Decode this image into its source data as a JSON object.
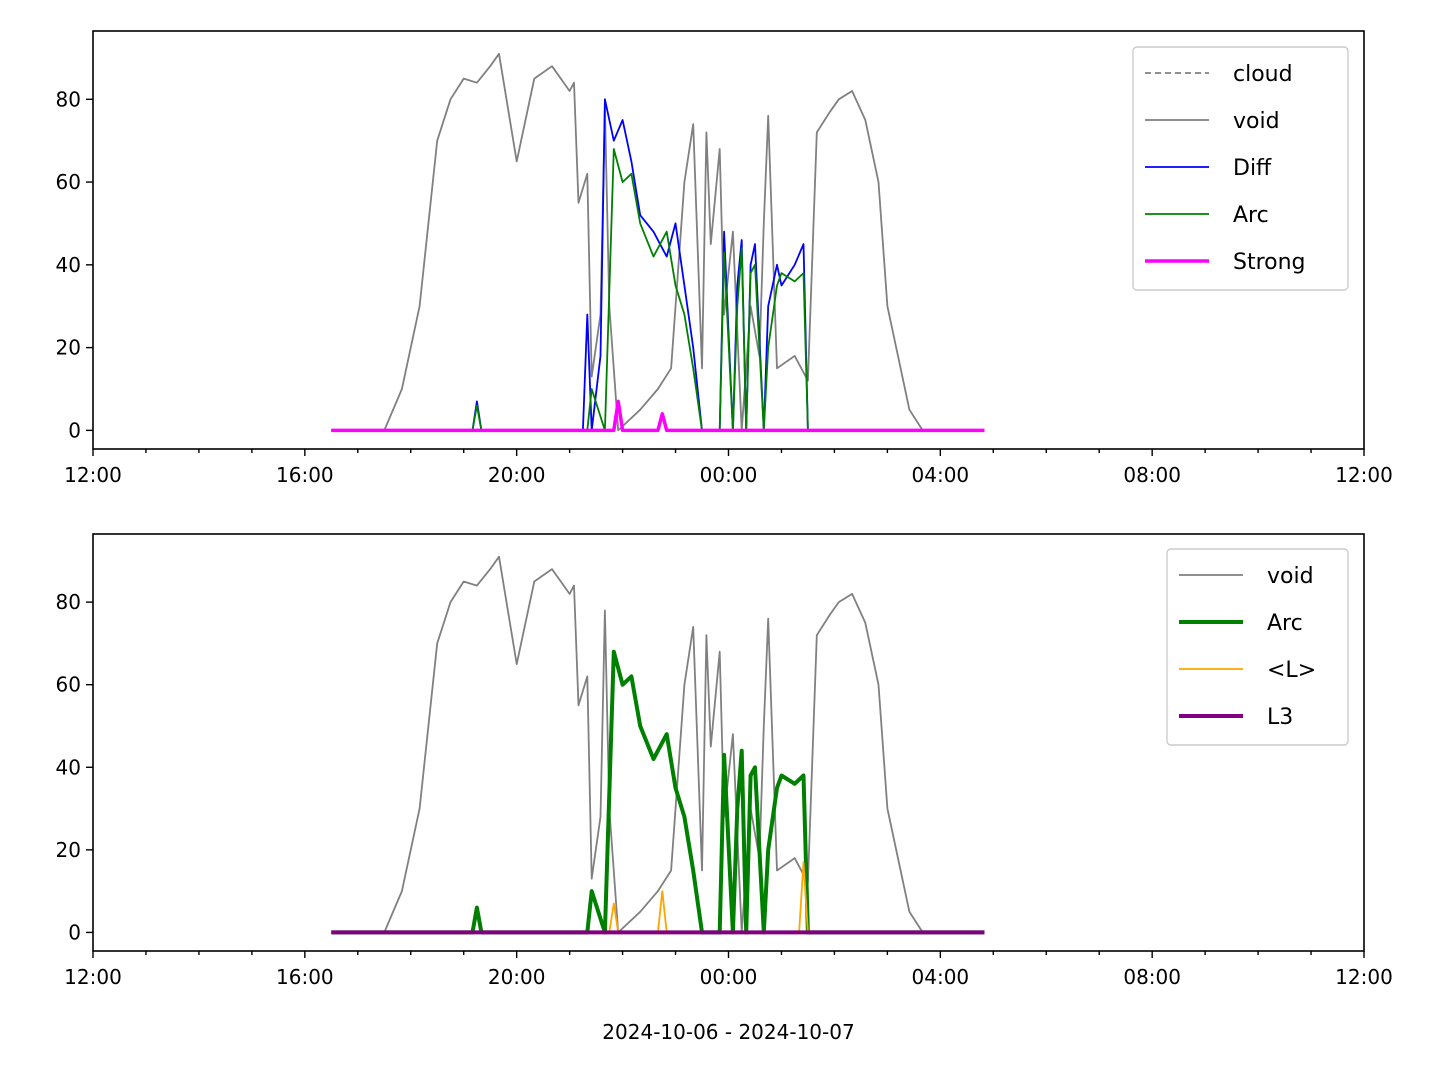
{
  "chart_data": [
    {
      "type": "line",
      "title": "",
      "xlabel": "",
      "ylabel": "",
      "x_axis": {
        "kind": "time",
        "range": [
          "2024-10-06T12:00",
          "2024-10-07T12:00"
        ],
        "tick_labels": [
          "12:00",
          "16:00",
          "20:00",
          "00:00",
          "04:00",
          "08:00",
          "12:00"
        ]
      },
      "ylim": [
        -4.5,
        96.5
      ],
      "y_ticks": [
        0,
        20,
        40,
        60,
        80
      ],
      "grid": false,
      "legend": {
        "placement": "top-right",
        "entries": [
          "cloud",
          "void",
          "Diff",
          "Arc",
          "Strong"
        ]
      },
      "series": [
        {
          "name": "cloud",
          "color": "#808080",
          "style": "dashed",
          "x": [],
          "y": []
        },
        {
          "name": "void",
          "color": "#808080",
          "style": "solid",
          "x": [
            "2024-10-06T16:30",
            "2024-10-06T17:30",
            "2024-10-06T17:50",
            "2024-10-06T18:10",
            "2024-10-06T18:30",
            "2024-10-06T18:45",
            "2024-10-06T19:00",
            "2024-10-06T19:15",
            "2024-10-06T19:30",
            "2024-10-06T19:40",
            "2024-10-06T20:00",
            "2024-10-06T20:20",
            "2024-10-06T20:40",
            "2024-10-06T21:00",
            "2024-10-06T21:05",
            "2024-10-06T21:10",
            "2024-10-06T21:20",
            "2024-10-06T21:25",
            "2024-10-06T21:35",
            "2024-10-06T21:40",
            "2024-10-06T21:45",
            "2024-10-06T21:55",
            "2024-10-06T22:20",
            "2024-10-06T22:40",
            "2024-10-06T22:55",
            "2024-10-06T23:10",
            "2024-10-06T23:20",
            "2024-10-06T23:30",
            "2024-10-06T23:35",
            "2024-10-06T23:40",
            "2024-10-06T23:50",
            "2024-10-06T23:55",
            "2024-10-07T00:05",
            "2024-10-07T00:15",
            "2024-10-07T00:25",
            "2024-10-07T00:35",
            "2024-10-07T00:40",
            "2024-10-07T00:45",
            "2024-10-07T00:55",
            "2024-10-07T01:15",
            "2024-10-07T01:30",
            "2024-10-07T01:40",
            "2024-10-07T01:55",
            "2024-10-07T02:05",
            "2024-10-07T02:20",
            "2024-10-07T02:35",
            "2024-10-07T02:50",
            "2024-10-07T03:00",
            "2024-10-07T03:15",
            "2024-10-07T03:25",
            "2024-10-07T03:40",
            "2024-10-07T04:00",
            "2024-10-07T04:50"
          ],
          "y": [
            0,
            0,
            10,
            30,
            70,
            80,
            85,
            84,
            88,
            91,
            65,
            85,
            88,
            82,
            84,
            55,
            62,
            13,
            28,
            78,
            30,
            0,
            5,
            10,
            15,
            60,
            74,
            15,
            72,
            45,
            68,
            28,
            48,
            0,
            30,
            18,
            50,
            76,
            15,
            18,
            12,
            72,
            77,
            80,
            82,
            75,
            60,
            30,
            15,
            5,
            0,
            0,
            0
          ]
        },
        {
          "name": "Diff",
          "color": "#0000ff",
          "style": "solid",
          "x": [
            "2024-10-06T16:30",
            "2024-10-06T19:10",
            "2024-10-06T19:15",
            "2024-10-06T19:20",
            "2024-10-06T21:15",
            "2024-10-06T21:20",
            "2024-10-06T21:25",
            "2024-10-06T21:35",
            "2024-10-06T21:40",
            "2024-10-06T21:50",
            "2024-10-06T22:00",
            "2024-10-06T22:10",
            "2024-10-06T22:20",
            "2024-10-06T22:35",
            "2024-10-06T22:50",
            "2024-10-06T23:00",
            "2024-10-06T23:10",
            "2024-10-06T23:20",
            "2024-10-06T23:30",
            "2024-10-06T23:50",
            "2024-10-06T23:55",
            "2024-10-07T00:05",
            "2024-10-07T00:10",
            "2024-10-07T00:15",
            "2024-10-07T00:20",
            "2024-10-07T00:25",
            "2024-10-07T00:30",
            "2024-10-07T00:40",
            "2024-10-07T00:45",
            "2024-10-07T00:55",
            "2024-10-07T01:00",
            "2024-10-07T01:15",
            "2024-10-07T01:25",
            "2024-10-07T01:30",
            "2024-10-07T01:40",
            "2024-10-07T01:50",
            "2024-10-07T04:50"
          ],
          "y": [
            0,
            0,
            7,
            0,
            0,
            28,
            0,
            18,
            80,
            70,
            75,
            65,
            52,
            48,
            42,
            50,
            35,
            20,
            0,
            0,
            48,
            0,
            35,
            46,
            0,
            40,
            45,
            0,
            30,
            40,
            35,
            40,
            45,
            0,
            0,
            0,
            0
          ]
        },
        {
          "name": "Arc",
          "color": "#008000",
          "style": "solid",
          "x": [
            "2024-10-06T16:30",
            "2024-10-06T19:10",
            "2024-10-06T19:15",
            "2024-10-06T19:20",
            "2024-10-06T21:20",
            "2024-10-06T21:25",
            "2024-10-06T21:40",
            "2024-10-06T21:50",
            "2024-10-06T22:00",
            "2024-10-06T22:10",
            "2024-10-06T22:20",
            "2024-10-06T22:35",
            "2024-10-06T22:50",
            "2024-10-06T23:00",
            "2024-10-06T23:10",
            "2024-10-06T23:20",
            "2024-10-06T23:30",
            "2024-10-06T23:50",
            "2024-10-06T23:55",
            "2024-10-07T00:05",
            "2024-10-07T00:10",
            "2024-10-07T00:15",
            "2024-10-07T00:20",
            "2024-10-07T00:25",
            "2024-10-07T00:30",
            "2024-10-07T00:40",
            "2024-10-07T00:45",
            "2024-10-07T00:55",
            "2024-10-07T01:00",
            "2024-10-07T01:15",
            "2024-10-07T01:25",
            "2024-10-07T01:30",
            "2024-10-07T01:40",
            "2024-10-07T01:50",
            "2024-10-07T04:50"
          ],
          "y": [
            0,
            0,
            6,
            0,
            0,
            10,
            0,
            68,
            60,
            62,
            50,
            42,
            48,
            35,
            28,
            15,
            0,
            0,
            43,
            0,
            30,
            44,
            0,
            38,
            40,
            0,
            20,
            35,
            38,
            36,
            38,
            0,
            0,
            0,
            0
          ]
        },
        {
          "name": "Strong",
          "color": "#ff00ff",
          "style": "solid",
          "x": [
            "2024-10-06T16:30",
            "2024-10-06T21:50",
            "2024-10-06T21:55",
            "2024-10-06T22:00",
            "2024-10-06T22:40",
            "2024-10-06T22:45",
            "2024-10-06T22:50",
            "2024-10-07T04:50"
          ],
          "y": [
            0,
            0,
            7,
            0,
            0,
            4,
            0,
            0
          ]
        }
      ]
    },
    {
      "type": "line",
      "title": "",
      "xlabel": "2024-10-06 - 2024-10-07",
      "ylabel": "",
      "x_axis": {
        "kind": "time",
        "range": [
          "2024-10-06T12:00",
          "2024-10-07T12:00"
        ],
        "tick_labels": [
          "12:00",
          "16:00",
          "20:00",
          "00:00",
          "04:00",
          "08:00",
          "12:00"
        ]
      },
      "ylim": [
        -4.5,
        96.5
      ],
      "y_ticks": [
        0,
        20,
        40,
        60,
        80
      ],
      "grid": false,
      "legend": {
        "placement": "top-right",
        "entries": [
          "void",
          "Arc",
          "<L>",
          "L3"
        ]
      },
      "series": [
        {
          "name": "void",
          "color": "#808080",
          "style": "solid",
          "x": [
            "2024-10-06T16:30",
            "2024-10-06T17:30",
            "2024-10-06T17:50",
            "2024-10-06T18:10",
            "2024-10-06T18:30",
            "2024-10-06T18:45",
            "2024-10-06T19:00",
            "2024-10-06T19:15",
            "2024-10-06T19:30",
            "2024-10-06T19:40",
            "2024-10-06T20:00",
            "2024-10-06T20:20",
            "2024-10-06T20:40",
            "2024-10-06T21:00",
            "2024-10-06T21:05",
            "2024-10-06T21:10",
            "2024-10-06T21:20",
            "2024-10-06T21:25",
            "2024-10-06T21:35",
            "2024-10-06T21:40",
            "2024-10-06T21:45",
            "2024-10-06T21:55",
            "2024-10-06T22:20",
            "2024-10-06T22:40",
            "2024-10-06T22:55",
            "2024-10-06T23:10",
            "2024-10-06T23:20",
            "2024-10-06T23:30",
            "2024-10-06T23:35",
            "2024-10-06T23:40",
            "2024-10-06T23:50",
            "2024-10-06T23:55",
            "2024-10-07T00:05",
            "2024-10-07T00:15",
            "2024-10-07T00:25",
            "2024-10-07T00:35",
            "2024-10-07T00:40",
            "2024-10-07T00:45",
            "2024-10-07T00:55",
            "2024-10-07T01:15",
            "2024-10-07T01:30",
            "2024-10-07T01:40",
            "2024-10-07T01:55",
            "2024-10-07T02:05",
            "2024-10-07T02:20",
            "2024-10-07T02:35",
            "2024-10-07T02:50",
            "2024-10-07T03:00",
            "2024-10-07T03:15",
            "2024-10-07T03:25",
            "2024-10-07T03:40",
            "2024-10-07T04:00",
            "2024-10-07T04:50"
          ],
          "y": [
            0,
            0,
            10,
            30,
            70,
            80,
            85,
            84,
            88,
            91,
            65,
            85,
            88,
            82,
            84,
            55,
            62,
            13,
            28,
            78,
            30,
            0,
            5,
            10,
            15,
            60,
            74,
            15,
            72,
            45,
            68,
            28,
            48,
            0,
            30,
            18,
            50,
            76,
            15,
            18,
            12,
            72,
            77,
            80,
            82,
            75,
            60,
            30,
            15,
            5,
            0,
            0,
            0
          ]
        },
        {
          "name": "Arc",
          "color": "#008000",
          "style": "solid",
          "x": [
            "2024-10-06T16:30",
            "2024-10-06T19:10",
            "2024-10-06T19:15",
            "2024-10-06T19:20",
            "2024-10-06T21:20",
            "2024-10-06T21:25",
            "2024-10-06T21:40",
            "2024-10-06T21:50",
            "2024-10-06T22:00",
            "2024-10-06T22:10",
            "2024-10-06T22:20",
            "2024-10-06T22:35",
            "2024-10-06T22:50",
            "2024-10-06T23:00",
            "2024-10-06T23:10",
            "2024-10-06T23:20",
            "2024-10-06T23:30",
            "2024-10-06T23:50",
            "2024-10-06T23:55",
            "2024-10-07T00:05",
            "2024-10-07T00:10",
            "2024-10-07T00:15",
            "2024-10-07T00:20",
            "2024-10-07T00:25",
            "2024-10-07T00:30",
            "2024-10-07T00:40",
            "2024-10-07T00:45",
            "2024-10-07T00:55",
            "2024-10-07T01:00",
            "2024-10-07T01:15",
            "2024-10-07T01:25",
            "2024-10-07T01:30",
            "2024-10-07T01:40",
            "2024-10-07T01:50",
            "2024-10-07T04:50"
          ],
          "y": [
            0,
            0,
            6,
            0,
            0,
            10,
            0,
            68,
            60,
            62,
            50,
            42,
            48,
            35,
            28,
            15,
            0,
            0,
            43,
            0,
            30,
            44,
            0,
            38,
            40,
            0,
            20,
            35,
            38,
            36,
            38,
            0,
            0,
            0,
            0
          ]
        },
        {
          "name": "<L>",
          "color": "#ffa500",
          "style": "solid",
          "x": [
            "2024-10-06T16:30",
            "2024-10-06T21:45",
            "2024-10-06T21:50",
            "2024-10-06T21:55",
            "2024-10-06T22:40",
            "2024-10-06T22:45",
            "2024-10-06T22:50",
            "2024-10-07T01:20",
            "2024-10-07T01:25",
            "2024-10-07T01:30",
            "2024-10-07T04:50"
          ],
          "y": [
            0,
            0,
            7,
            0,
            0,
            10,
            0,
            0,
            17,
            0,
            0
          ]
        },
        {
          "name": "L3",
          "color": "#800080",
          "style": "solid",
          "x": [
            "2024-10-06T16:30",
            "2024-10-07T04:50"
          ],
          "y": [
            0,
            0
          ]
        }
      ]
    }
  ]
}
